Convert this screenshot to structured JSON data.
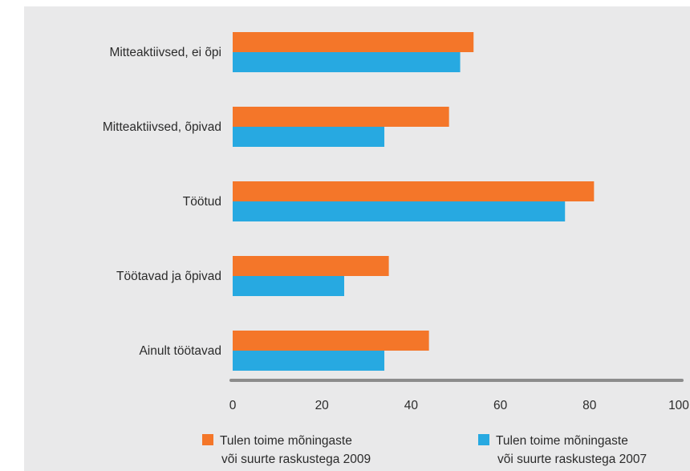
{
  "chart_data": {
    "type": "bar",
    "orientation": "horizontal",
    "categories": [
      "Mitteaktiivsed, ei õpi",
      "Mitteaktiivsed, õpivad",
      "Töötud",
      "Töötavad ja õpivad",
      "Ainult töötavad"
    ],
    "series": [
      {
        "name_lines": [
          "Tulen toime mõningaste",
          "või suurte raskustega 2009"
        ],
        "color": "#f47629",
        "values": [
          54,
          48.5,
          81,
          35,
          44
        ]
      },
      {
        "name_lines": [
          "Tulen toime mõningaste",
          "või suurte raskustega 2007"
        ],
        "color": "#27a9e1",
        "values": [
          51,
          34,
          74.5,
          25,
          34
        ]
      }
    ],
    "xlim": [
      0,
      100
    ],
    "xticks": [
      "0",
      "20",
      "40",
      "60",
      "80",
      "100"
    ],
    "grid": false,
    "legend_position": "bottom",
    "axis_color": "#8c8c8c"
  }
}
